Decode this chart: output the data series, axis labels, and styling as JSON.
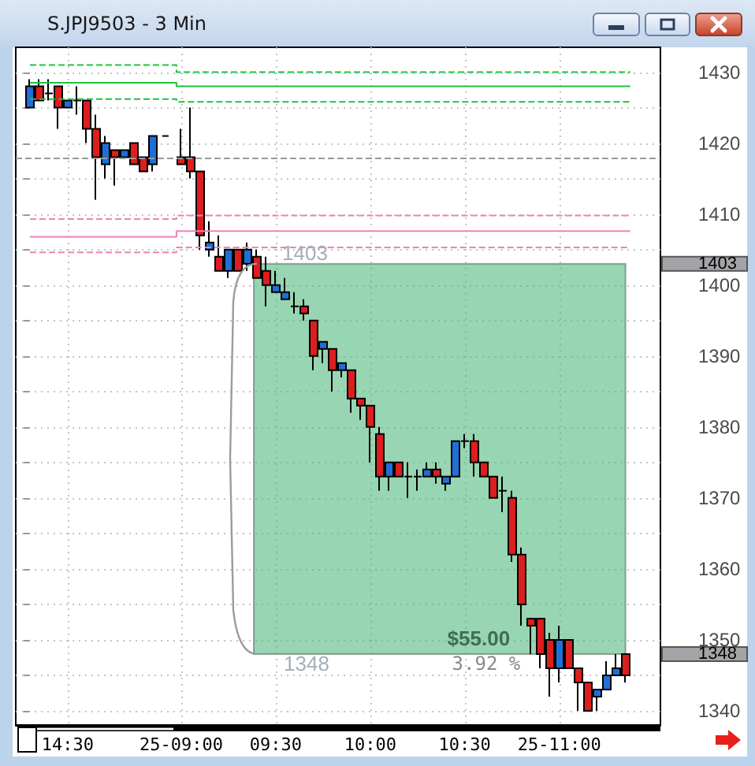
{
  "chart_data": {
    "type": "candlestick",
    "title": "S.JPJ9503 - 3 Min",
    "categories": [
      null,
      null,
      null,
      null,
      "14:30",
      null,
      null,
      null,
      null,
      null,
      null,
      null,
      null,
      null,
      null,
      null,
      "25-09:00",
      null,
      null,
      null,
      null,
      null,
      null,
      null,
      null,
      null,
      "09:30",
      null,
      null,
      null,
      null,
      null,
      null,
      null,
      null,
      null,
      "10:00",
      null,
      null,
      null,
      null,
      null,
      null,
      null,
      null,
      null,
      "10:30",
      null,
      null,
      null,
      null,
      null,
      null,
      null,
      null,
      null,
      "25-11:00",
      null,
      null,
      null,
      null,
      null,
      null,
      null
    ],
    "ohlc": [
      [
        1425,
        1429,
        1425,
        1428
      ],
      [
        1428,
        1429,
        1426,
        1426
      ],
      [
        1427,
        1429,
        1426,
        1427
      ],
      [
        1428,
        1428,
        1422,
        1425
      ],
      [
        1425,
        1426,
        1425,
        1426
      ],
      [
        1426,
        1428,
        1424,
        1426
      ],
      [
        1426,
        1426,
        1420,
        1422
      ],
      [
        1422,
        1424,
        1412,
        1418
      ],
      [
        1417,
        1421,
        1415,
        1420
      ],
      [
        1419,
        1419,
        1414,
        1418
      ],
      [
        1418,
        1419,
        1418,
        1419
      ],
      [
        1420,
        1420,
        1417,
        1417
      ],
      [
        1418,
        1418,
        1416,
        1416
      ],
      [
        1417,
        1421,
        1416,
        1421
      ],
      null,
      null,
      [
        1418,
        1422,
        1417,
        1417
      ],
      [
        1418,
        1425,
        1415,
        1416
      ],
      [
        1416,
        1416,
        1405,
        1407
      ],
      [
        1405,
        1409,
        1404,
        1406
      ],
      [
        1404,
        1407,
        1402,
        1402
      ],
      [
        1402,
        1405,
        1401,
        1405
      ],
      [
        1405,
        1405,
        1402,
        1402
      ],
      [
        1403,
        1406,
        1402,
        1405
      ],
      [
        1404,
        1405,
        1401,
        1401
      ],
      [
        1402,
        1404,
        1397,
        1400
      ],
      [
        1399,
        1402,
        1399,
        1400
      ],
      [
        1398,
        1401,
        1398,
        1399
      ],
      [
        1397,
        1399,
        1396,
        1397
      ],
      [
        1397,
        1398,
        1395,
        1396
      ],
      [
        1395,
        1395,
        1388,
        1390
      ],
      [
        1391,
        1392,
        1389,
        1392
      ],
      [
        1391,
        1391,
        1385,
        1388
      ],
      [
        1388,
        1389,
        1387,
        1389
      ],
      [
        1388,
        1388,
        1382,
        1384
      ],
      [
        1384,
        1384,
        1381,
        1383
      ],
      [
        1383,
        1383,
        1375,
        1380
      ],
      [
        1379,
        1380,
        1371,
        1373
      ],
      [
        1373,
        1375,
        1371,
        1375
      ],
      [
        1375,
        1375,
        1373,
        1373
      ],
      [
        1373,
        1375,
        1370,
        1373
      ],
      [
        1373,
        1374,
        1371,
        1373
      ],
      [
        1373,
        1375,
        1373,
        1374
      ],
      [
        1374,
        1375,
        1372,
        1373
      ],
      [
        1372,
        1373,
        1371,
        1373
      ],
      [
        1373,
        1378,
        1373,
        1378
      ],
      [
        1378,
        1379,
        1377,
        1378
      ],
      [
        1378,
        1379,
        1373,
        1375
      ],
      [
        1375,
        1375,
        1373,
        1373
      ],
      [
        1373,
        1373,
        1370,
        1370
      ],
      [
        1371,
        1373,
        1368,
        1371
      ],
      [
        1370,
        1371,
        1361,
        1362
      ],
      [
        1362,
        1363,
        1352,
        1355
      ],
      [
        1353,
        1353,
        1348,
        1352
      ],
      [
        1353,
        1353,
        1346,
        1348
      ],
      [
        1350,
        1351,
        1342,
        1346
      ],
      [
        1346,
        1352,
        1344,
        1350
      ],
      [
        1350,
        1350,
        1346,
        1346
      ],
      [
        1346,
        1346,
        1340,
        1344
      ],
      [
        1344,
        1344,
        1340,
        1340
      ],
      [
        1342,
        1343,
        1340,
        1343
      ],
      [
        1343,
        1347,
        1343,
        1345
      ],
      [
        1345,
        1348,
        1345,
        1346
      ],
      [
        1348,
        1348,
        1344,
        1345
      ]
    ],
    "colors": [
      "#1f6fd8",
      "#dc1e1e",
      "#000000",
      "#dc1e1e",
      "#1f6fd8",
      "#000000",
      "#dc1e1e",
      "#dc1e1e",
      "#1f6fd8",
      "#dc1e1e",
      "#1f6fd8",
      "#dc1e1e",
      "#dc1e1e",
      "#1f6fd8",
      null,
      null,
      "#dc1e1e",
      "#dc1e1e",
      "#dc1e1e",
      "#1f6fd8",
      "#dc1e1e",
      "#1f6fd8",
      "#dc1e1e",
      "#1f6fd8",
      "#dc1e1e",
      "#dc1e1e",
      "#1f6fd8",
      "#1f6fd8",
      "#000000",
      "#dc1e1e",
      "#dc1e1e",
      "#1f6fd8",
      "#dc1e1e",
      "#1f6fd8",
      "#dc1e1e",
      "#dc1e1e",
      "#dc1e1e",
      "#dc1e1e",
      "#1f6fd8",
      "#dc1e1e",
      "#000000",
      "#000000",
      "#1f6fd8",
      "#dc1e1e",
      "#1f6fd8",
      "#1f6fd8",
      "#000000",
      "#dc1e1e",
      "#dc1e1e",
      "#dc1e1e",
      "#000000",
      "#dc1e1e",
      "#dc1e1e",
      "#dc1e1e",
      "#dc1e1e",
      "#dc1e1e",
      "#1f6fd8",
      "#dc1e1e",
      "#dc1e1e",
      "#dc1e1e",
      "#1f6fd8",
      "#1f6fd8",
      "#1f6fd8",
      "#dc1e1e"
    ],
    "ylim": [
      1338,
      1433.5
    ],
    "yticks": [
      1340,
      {
        "value": 1345,
        "label": null
      },
      1350,
      {
        "value": 1355,
        "label": null
      },
      1360,
      {
        "value": 1365,
        "label": null
      },
      1370,
      {
        "value": 1375,
        "label": null
      },
      1380,
      {
        "value": 1385,
        "label": null
      },
      1390,
      {
        "value": 1395,
        "label": null
      },
      1400,
      {
        "value": 1405,
        "label": null
      },
      1410,
      {
        "value": 1415,
        "label": null
      },
      1420,
      {
        "value": 1425,
        "label": null
      },
      1430
    ],
    "grid": true,
    "series": [
      {
        "type": "step",
        "color": "#1fc43a",
        "line_style": "dashed",
        "values": [
          1431,
          1431,
          1431,
          1431,
          1431,
          1431,
          1431,
          1431,
          1431,
          1431,
          1431,
          1431,
          1431,
          1431,
          1431,
          1431,
          1430,
          1430,
          1430,
          1430,
          1430,
          1430,
          1430,
          1430,
          1430,
          1430,
          1430,
          1430,
          1430,
          1430,
          1430,
          1430,
          1430,
          1430,
          1430,
          1430,
          1430,
          1430,
          1430,
          1430,
          1430,
          1430,
          1430,
          1430,
          1430,
          1430,
          1430,
          1430,
          1430,
          1430,
          1430,
          1430,
          1430,
          1430,
          1430,
          1430,
          1430,
          1430,
          1430,
          1430,
          1430,
          1430,
          1430,
          1430
        ]
      },
      {
        "type": "step",
        "color": "#1fc43a",
        "line_style": "solid",
        "values": [
          1428.5,
          1428.5,
          1428.5,
          1428.5,
          1428.5,
          1428.5,
          1428.5,
          1428.5,
          1428.5,
          1428.5,
          1428.5,
          1428.5,
          1428.5,
          1428.5,
          1428.5,
          1428.5,
          1428,
          1428,
          1428,
          1428,
          1428,
          1428,
          1428,
          1428,
          1428,
          1428,
          1428,
          1428,
          1428,
          1428,
          1428,
          1428,
          1428,
          1428,
          1428,
          1428,
          1428,
          1428,
          1428,
          1428,
          1428,
          1428,
          1428,
          1428,
          1428,
          1428,
          1428,
          1428,
          1428,
          1428,
          1428,
          1428,
          1428,
          1428,
          1428,
          1428,
          1428,
          1428,
          1428,
          1428,
          1428,
          1428,
          1428,
          1428
        ]
      },
      {
        "type": "step",
        "color": "#1fc43a",
        "line_style": "dashed",
        "values": [
          1426.2,
          1426.2,
          1426.2,
          1426.2,
          1426.2,
          1426.2,
          1426.2,
          1426.2,
          1426.2,
          1426.2,
          1426.2,
          1426.2,
          1426.2,
          1426.2,
          1426.2,
          1426.2,
          1425.8,
          1425.8,
          1425.8,
          1425.8,
          1425.8,
          1425.8,
          1425.8,
          1425.8,
          1425.8,
          1425.8,
          1425.8,
          1425.8,
          1425.8,
          1425.8,
          1425.8,
          1425.8,
          1425.8,
          1425.8,
          1425.8,
          1425.8,
          1425.8,
          1425.8,
          1425.8,
          1425.8,
          1425.8,
          1425.8,
          1425.8,
          1425.8,
          1425.8,
          1425.8,
          1425.8,
          1425.8,
          1425.8,
          1425.8,
          1425.8,
          1425.8,
          1425.8,
          1425.8,
          1425.8,
          1425.8,
          1425.8,
          1425.8,
          1425.8,
          1425.8,
          1425.8,
          1425.8,
          1425.8,
          1425.8
        ]
      },
      {
        "type": "step",
        "color": "#ee82b8",
        "line_style": "dashed",
        "values": [
          1409.3,
          1409.3,
          1409.3,
          1409.3,
          1409.3,
          1409.3,
          1409.3,
          1409.3,
          1409.3,
          1409.3,
          1409.3,
          1409.3,
          1409.3,
          1409.3,
          1409.3,
          1409.3,
          1409.8,
          1409.8,
          1409.8,
          1409.8,
          1409.8,
          1409.8,
          1409.8,
          1409.8,
          1409.8,
          1409.8,
          1409.8,
          1409.8,
          1409.8,
          1409.8,
          1409.8,
          1409.8,
          1409.8,
          1409.8,
          1409.8,
          1409.8,
          1409.8,
          1409.8,
          1409.8,
          1409.8,
          1409.8,
          1409.8,
          1409.8,
          1409.8,
          1409.8,
          1409.8,
          1409.8,
          1409.8,
          1409.8,
          1409.8,
          1409.8,
          1409.8,
          1409.8,
          1409.8,
          1409.8,
          1409.8,
          1409.8,
          1409.8,
          1409.8,
          1409.8,
          1409.8,
          1409.8,
          1409.8,
          1409.8
        ]
      },
      {
        "type": "step",
        "color": "#ee82b8",
        "line_style": "solid",
        "values": [
          1406.8,
          1406.8,
          1406.8,
          1406.8,
          1406.8,
          1406.8,
          1406.8,
          1406.8,
          1406.8,
          1406.8,
          1406.8,
          1406.8,
          1406.8,
          1406.8,
          1406.8,
          1406.8,
          1407.6,
          1407.6,
          1407.6,
          1407.6,
          1407.6,
          1407.6,
          1407.6,
          1407.6,
          1407.6,
          1407.6,
          1407.6,
          1407.6,
          1407.6,
          1407.6,
          1407.6,
          1407.6,
          1407.6,
          1407.6,
          1407.6,
          1407.6,
          1407.6,
          1407.6,
          1407.6,
          1407.6,
          1407.6,
          1407.6,
          1407.6,
          1407.6,
          1407.6,
          1407.6,
          1407.6,
          1407.6,
          1407.6,
          1407.6,
          1407.6,
          1407.6,
          1407.6,
          1407.6,
          1407.6,
          1407.6,
          1407.6,
          1407.6,
          1407.6,
          1407.6,
          1407.6,
          1407.6,
          1407.6,
          1407.6
        ]
      },
      {
        "type": "step",
        "color": "#ee82b8",
        "line_style": "dashed",
        "values": [
          1404.6,
          1404.6,
          1404.6,
          1404.6,
          1404.6,
          1404.6,
          1404.6,
          1404.6,
          1404.6,
          1404.6,
          1404.6,
          1404.6,
          1404.6,
          1404.6,
          1404.6,
          1404.6,
          1405.3,
          1405.3,
          1405.3,
          1405.3,
          1405.3,
          1405.3,
          1405.3,
          1405.3,
          1405.3,
          1405.3,
          1405.3,
          1405.3,
          1405.3,
          1405.3,
          1405.3,
          1405.3,
          1405.3,
          1405.3,
          1405.3,
          1405.3,
          1405.3,
          1405.3,
          1405.3,
          1405.3,
          1405.3,
          1405.3,
          1405.3,
          1405.3,
          1405.3,
          1405.3,
          1405.3,
          1405.3,
          1405.3,
          1405.3,
          1405.3,
          1405.3,
          1405.3,
          1405.3,
          1405.3,
          1405.3,
          1405.3,
          1405.3,
          1405.3,
          1405.3,
          1405.3,
          1405.3,
          1405.3,
          1405.3
        ]
      },
      {
        "type": "line",
        "color": "#000000",
        "line_style": "dashed",
        "values": [
          null,
          null,
          null,
          null,
          null,
          null,
          null,
          null,
          null,
          null,
          null,
          null,
          null,
          null,
          1421,
          1421,
          null,
          null,
          null,
          null,
          null,
          null,
          null,
          null,
          null,
          null,
          null,
          null,
          null,
          null,
          null,
          null,
          null,
          null,
          null,
          null,
          null,
          null,
          null,
          null,
          null,
          null,
          null,
          null,
          null,
          null,
          null,
          null,
          null,
          null,
          null,
          null,
          null,
          null,
          null,
          null,
          null,
          null,
          null,
          null,
          null,
          null,
          null,
          null
        ]
      }
    ],
    "ref_lines": [
      {
        "axis": "y",
        "value": 1418,
        "color": "#9a9a9a",
        "line_style": "dashed"
      }
    ],
    "bands": [
      {
        "axis": "y",
        "from": 1348,
        "to": 1403,
        "color": "#98d5b2"
      }
    ],
    "annotations": [
      "1403",
      "1348",
      "$55.00",
      "3.92 %"
    ]
  }
}
